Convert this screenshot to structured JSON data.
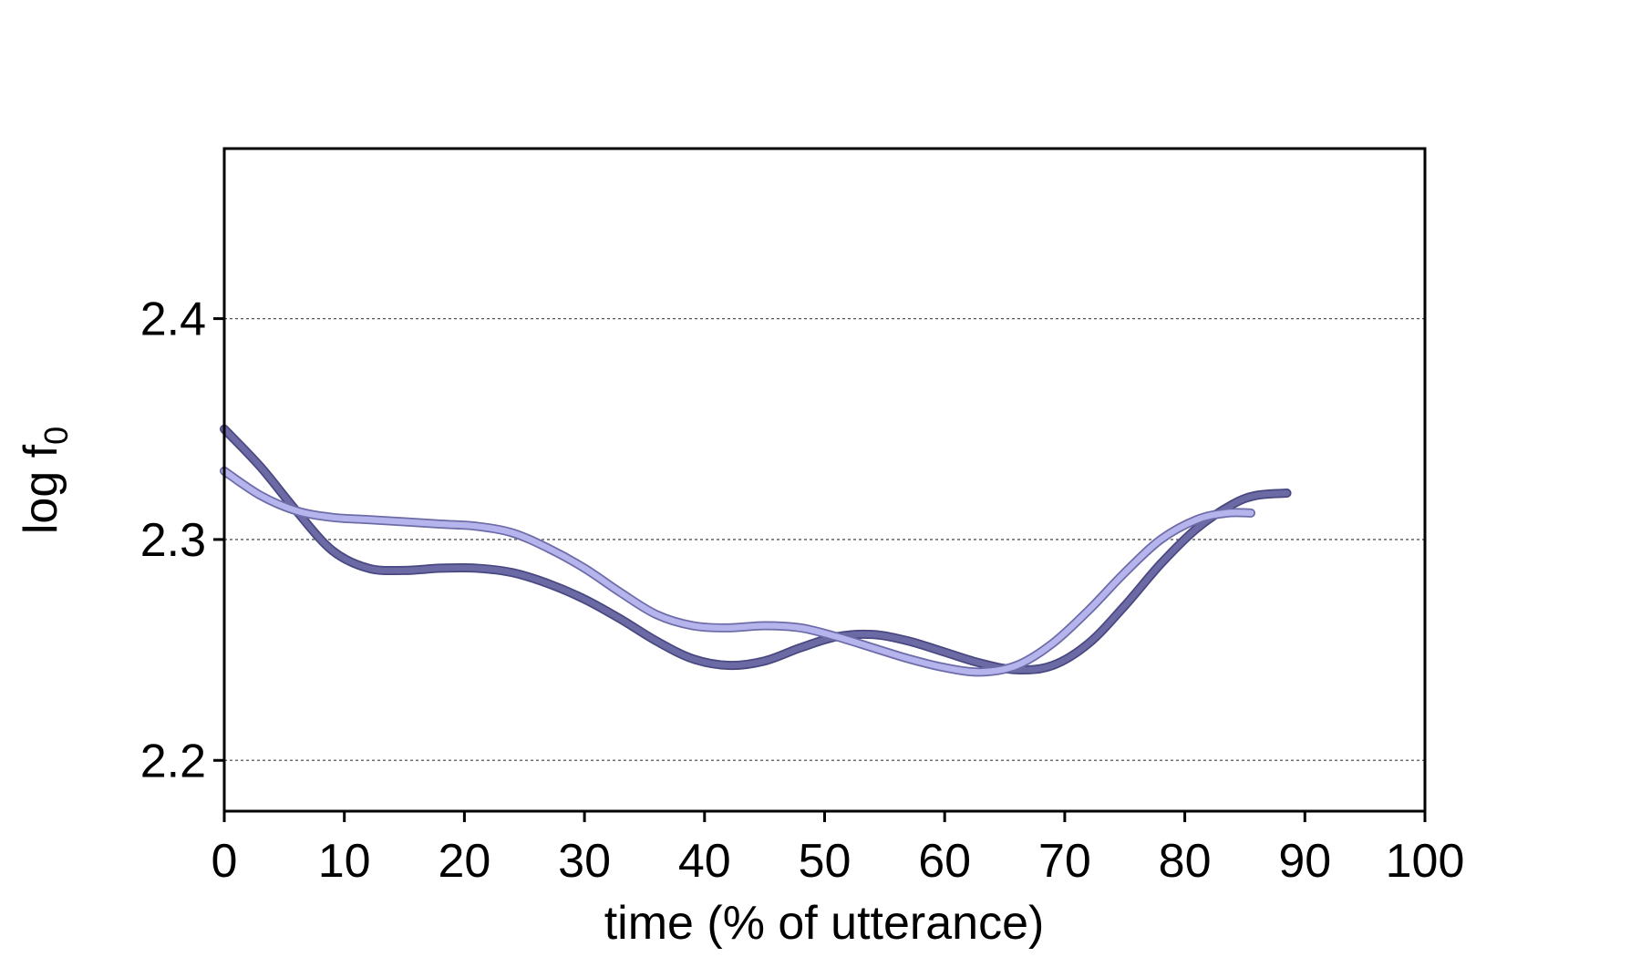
{
  "chart_data": {
    "type": "line",
    "xlabel": "time (% of utterance)",
    "ylabel": "log f",
    "ylabel_subscript": "0",
    "xlim": [
      0,
      100
    ],
    "ylim": [
      2.177,
      2.477
    ],
    "xticks": [
      "0",
      "10",
      "20",
      "30",
      "40",
      "50",
      "60",
      "70",
      "80",
      "90",
      "100"
    ],
    "yticks": [
      "2.2",
      "2.3",
      "2.4"
    ],
    "grid": "horizontal dotted at y ticks",
    "series": [
      {
        "color": "#6b6aa4",
        "outline": "#4a4880",
        "x": [
          0,
          3,
          6,
          9,
          12,
          15,
          18,
          21,
          24,
          27,
          30,
          33,
          36,
          39,
          42,
          45,
          48,
          51,
          54,
          57,
          60,
          63,
          66,
          69,
          72,
          75,
          78,
          81,
          84,
          86,
          88.5
        ],
        "y": [
          2.35,
          2.333,
          2.313,
          2.295,
          2.287,
          2.286,
          2.287,
          2.287,
          2.285,
          2.28,
          2.273,
          2.264,
          2.254,
          2.246,
          2.243,
          2.245,
          2.251,
          2.256,
          2.257,
          2.254,
          2.249,
          2.244,
          2.241,
          2.243,
          2.253,
          2.27,
          2.289,
          2.305,
          2.316,
          2.32,
          2.321
        ]
      },
      {
        "color": "#b6b4ec",
        "outline": "#6e6ca8",
        "x": [
          0,
          3,
          6,
          9,
          12,
          15,
          18,
          21,
          24,
          27,
          30,
          33,
          36,
          39,
          42,
          45,
          48,
          51,
          54,
          57,
          60,
          63,
          66,
          69,
          72,
          75,
          78,
          81,
          83.5,
          85.5
        ],
        "y": [
          2.331,
          2.32,
          2.313,
          2.31,
          2.309,
          2.308,
          2.307,
          2.306,
          2.303,
          2.296,
          2.287,
          2.276,
          2.266,
          2.261,
          2.26,
          2.261,
          2.26,
          2.256,
          2.251,
          2.246,
          2.242,
          2.24,
          2.243,
          2.253,
          2.268,
          2.285,
          2.3,
          2.309,
          2.312,
          2.312
        ]
      }
    ]
  }
}
